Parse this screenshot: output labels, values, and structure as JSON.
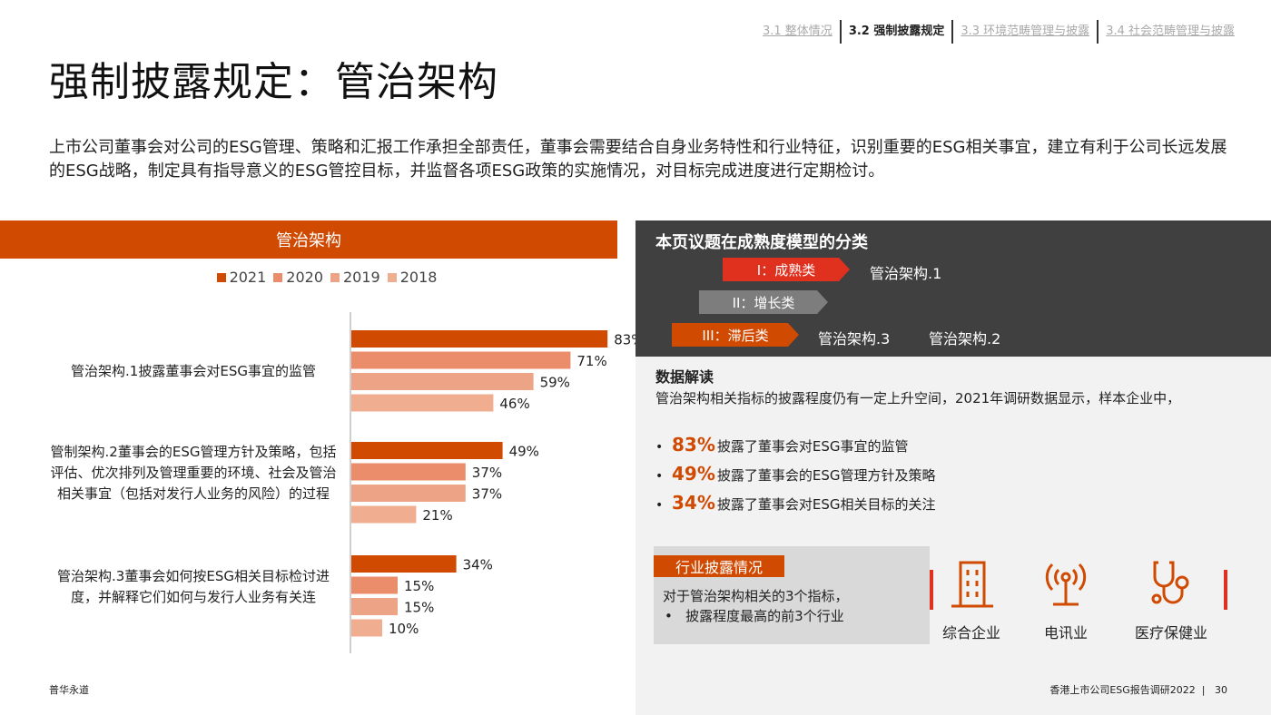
{
  "nav": {
    "tabs": [
      {
        "label": "3.1 整体情况",
        "active": false
      },
      {
        "label": "3.2 强制披露规定",
        "active": true
      },
      {
        "label": "3.3 环境范畴管理与披露",
        "active": false
      },
      {
        "label": "3.4 社会范畴管理与披露",
        "active": false
      }
    ]
  },
  "page_title": "强制披露规定：管治架构",
  "intro": "上市公司董事会对公司的ESG管理、策略和汇报工作承担全部责任，董事会需要结合自身业务特性和行业特征，识别重要的ESG相关事宜，建立有利于公司长远发展的ESG战略，制定具有指导意义的ESG管控目标，并监督各项ESG政策的实施情况，对目标完成进度进行定期检讨。",
  "chart_panel": {
    "header": "管治架构"
  },
  "chart_data": {
    "type": "bar",
    "orientation": "horizontal",
    "categories": [
      "管治架构.1披露董事会对ESG事宜的监管",
      "管制架构.2董事会的ESG管理方针及策略，包括评估、优次排列及管理重要的环境、社会及管治相关事宜（包括对发行人业务的风险）的过程",
      "管治架构.3董事会如何按ESG相关目标检讨进度，并解释它们如何与发行人业务有关连"
    ],
    "series": [
      {
        "name": "2021",
        "values": [
          83,
          49,
          34
        ],
        "color": "#d04a02"
      },
      {
        "name": "2020",
        "values": [
          71,
          37,
          15
        ],
        "color": "#eb8c6b"
      },
      {
        "name": "2019",
        "values": [
          59,
          37,
          15
        ],
        "color": "#eda486"
      },
      {
        "name": "2018",
        "values": [
          46,
          21,
          10
        ],
        "color": "#f0ad8f"
      }
    ],
    "value_suffix": "%",
    "xlim": [
      0,
      100
    ],
    "legend_position": "top"
  },
  "maturity": {
    "title": "本页议题在成熟度模型的分类",
    "levels": [
      {
        "label": "I：成熟类",
        "items": [
          "管治架构.1"
        ]
      },
      {
        "label": "II：增长类",
        "items": []
      },
      {
        "label": "III：滞后类",
        "items": [
          "管治架构.3",
          "管治架构.2"
        ]
      }
    ]
  },
  "interpretation": {
    "title": "数据解读",
    "body": "管治架构相关指标的披露程度仍有一定上升空间，2021年调研数据显示，样本企业中，",
    "bullets": [
      {
        "pct": "83%",
        "text": "披露了董事会对ESG事宜的监管"
      },
      {
        "pct": "49%",
        "text": "披露了董事会的ESG管理方针及策略"
      },
      {
        "pct": "34%",
        "text": "披露了董事会对ESG相关目标的关注"
      }
    ]
  },
  "industry": {
    "tag": "行业披露情况",
    "line1": "对于管治架构相关的3个指标，",
    "line2": "披露程度最高的前3个行业",
    "items": [
      {
        "label": "综合企业",
        "icon": "building-icon"
      },
      {
        "label": "电讯业",
        "icon": "antenna-icon"
      },
      {
        "label": "医疗保健业",
        "icon": "stethoscope-icon"
      }
    ]
  },
  "footer": {
    "left": "普华永道",
    "right": "香港上市公司ESG报告调研2022",
    "page": "30"
  }
}
